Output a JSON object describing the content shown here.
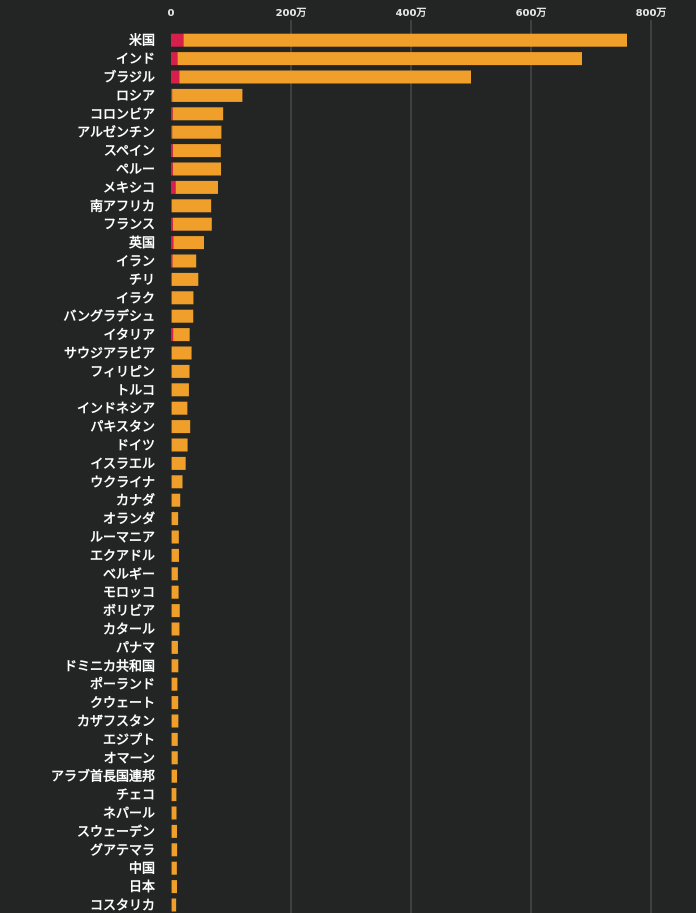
{
  "chart_data": {
    "type": "bar",
    "orientation": "horizontal",
    "stacked": true,
    "grid": true,
    "xlim": [
      0,
      8000000
    ],
    "xticks": [
      0,
      2000000,
      4000000,
      6000000,
      8000000
    ],
    "xtick_labels": [
      "0",
      "200万",
      "400万",
      "600万",
      "800万"
    ],
    "colors": {
      "background": "#222524",
      "grid": "#5a5d5c",
      "series_deaths": "#d61f4a",
      "series_cases": "#f0a02a",
      "label_text": "#ffffff"
    },
    "categories": [
      "米国",
      "インド",
      "ブラジル",
      "ロシア",
      "コロンビア",
      "アルゼンチン",
      "スペイン",
      "ペルー",
      "メキシコ",
      "南アフリカ",
      "フランス",
      "英国",
      "イラン",
      "チリ",
      "イラク",
      "バングラデシュ",
      "イタリア",
      "サウジアラビア",
      "フィリピン",
      "トルコ",
      "インドネシア",
      "パキスタン",
      "ドイツ",
      "イスラエル",
      "ウクライナ",
      "カナダ",
      "オランダ",
      "ルーマニア",
      "エクアドル",
      "ベルギー",
      "モロッコ",
      "ボリビア",
      "カタール",
      "パナマ",
      "ドミニカ共和国",
      "ポーランド",
      "クウェート",
      "カザフスタン",
      "エジプト",
      "オマーン",
      "アラブ首長国連邦",
      "チェコ",
      "ネパール",
      "スウェーデン",
      "グアテマラ",
      "中国",
      "日本",
      "コスタリカ"
    ],
    "series": [
      {
        "values": [
          210000,
          110000,
          140000,
          20000,
          29000,
          20000,
          32000,
          32000,
          78000,
          17000,
          32000,
          42000,
          26000,
          12000,
          9000,
          5000,
          36000,
          5000,
          5000,
          8000,
          11000,
          6000,
          9000,
          1800,
          5000,
          9000,
          6000,
          5500,
          11000,
          10000,
          2000,
          7800,
          220,
          2500,
          2000,
          2600,
          600,
          1900,
          5800,
          1000,
          400,
          900,
          550,
          5800,
          3100,
          4600,
          1500,
          700
        ]
      },
      {
        "values": [
          7390000,
          6740000,
          4860000,
          1170000,
          840000,
          820000,
          798000,
          802000,
          705000,
          652000,
          648000,
          508000,
          394000,
          438000,
          357000,
          354000,
          275000,
          326000,
          292000,
          282000,
          256000,
          303000,
          260000,
          228000,
          175000,
          137000,
          102000,
          114000,
          116000,
          98000,
          110000,
          129000,
          124000,
          99000,
          105000,
          90000,
          103000,
          106000,
          96000,
          96000,
          84000,
          73000,
          75000,
          83000,
          85000,
          81000,
          83000,
          69000
        ]
      }
    ]
  }
}
